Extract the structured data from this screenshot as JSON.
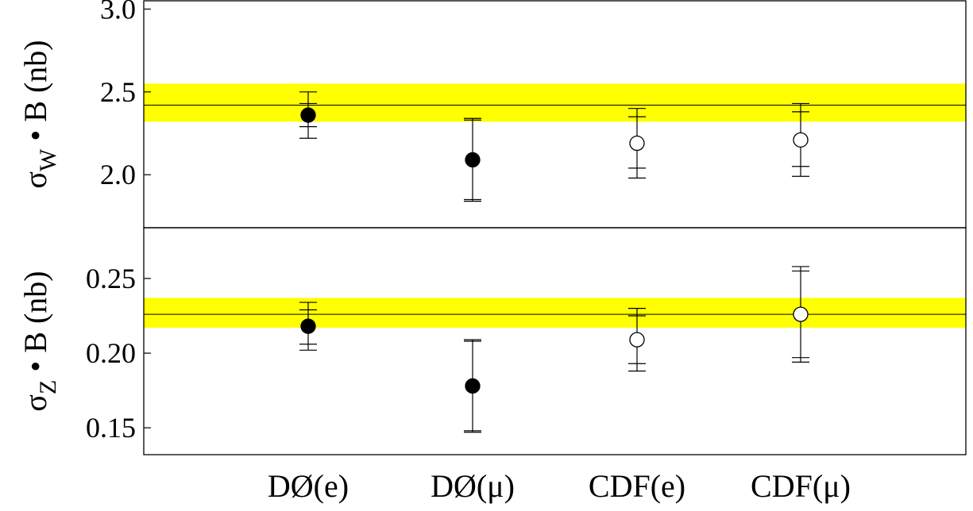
{
  "chart_data": [
    {
      "type": "scatter",
      "panel": "top",
      "ylabel_main": "σ",
      "ylabel_sub": "W",
      "ylabel_rest": " • B (nb)",
      "ylim": [
        1.68,
        3.05
      ],
      "yticks": [
        2.0,
        2.5,
        3.0
      ],
      "ytick_labels": [
        "2.0",
        "2.5",
        "3.0"
      ],
      "reference": {
        "value": 2.42,
        "band": [
          2.32,
          2.55
        ],
        "band_color": "#ffff00"
      },
      "points": [
        {
          "x": "DØ(e)",
          "y": 2.36,
          "stat_err": [
            2.29,
            2.43
          ],
          "total_err": [
            2.22,
            2.5
          ],
          "marker": "filled"
        },
        {
          "x": "DØ(μ)",
          "y": 2.09,
          "stat_err": [
            1.85,
            2.33
          ],
          "total_err": [
            1.84,
            2.34
          ],
          "marker": "filled"
        },
        {
          "x": "CDF(e)",
          "y": 2.19,
          "stat_err": [
            2.04,
            2.35
          ],
          "total_err": [
            1.98,
            2.4
          ],
          "marker": "open"
        },
        {
          "x": "CDF(μ)",
          "y": 2.21,
          "stat_err": [
            2.05,
            2.38
          ],
          "total_err": [
            1.99,
            2.43
          ],
          "marker": "open"
        }
      ]
    },
    {
      "type": "scatter",
      "panel": "bottom",
      "ylabel_main": "σ",
      "ylabel_sub": "Z",
      "ylabel_rest": " • B (nb)",
      "ylim": [
        0.132,
        0.284
      ],
      "yticks": [
        0.15,
        0.2,
        0.25
      ],
      "ytick_labels": [
        "0.15",
        "0.20",
        "0.25"
      ],
      "reference": {
        "value": 0.226,
        "band": [
          0.217,
          0.237
        ],
        "band_color": "#ffff00"
      },
      "points": [
        {
          "x": "DØ(e)",
          "y": 0.218,
          "stat_err": [
            0.206,
            0.229
          ],
          "total_err": [
            0.202,
            0.234
          ],
          "marker": "filled"
        },
        {
          "x": "DØ(μ)",
          "y": 0.178,
          "stat_err": [
            0.148,
            0.208
          ],
          "total_err": [
            0.147,
            0.209
          ],
          "marker": "filled"
        },
        {
          "x": "CDF(e)",
          "y": 0.209,
          "stat_err": [
            0.193,
            0.225
          ],
          "total_err": [
            0.188,
            0.23
          ],
          "marker": "open"
        },
        {
          "x": "CDF(μ)",
          "y": 0.226,
          "stat_err": [
            0.197,
            0.255
          ],
          "total_err": [
            0.194,
            0.258
          ],
          "marker": "open"
        }
      ]
    }
  ],
  "categories": [
    "DØ(e)",
    "DØ(μ)",
    "CDF(e)",
    "CDF(μ)"
  ]
}
